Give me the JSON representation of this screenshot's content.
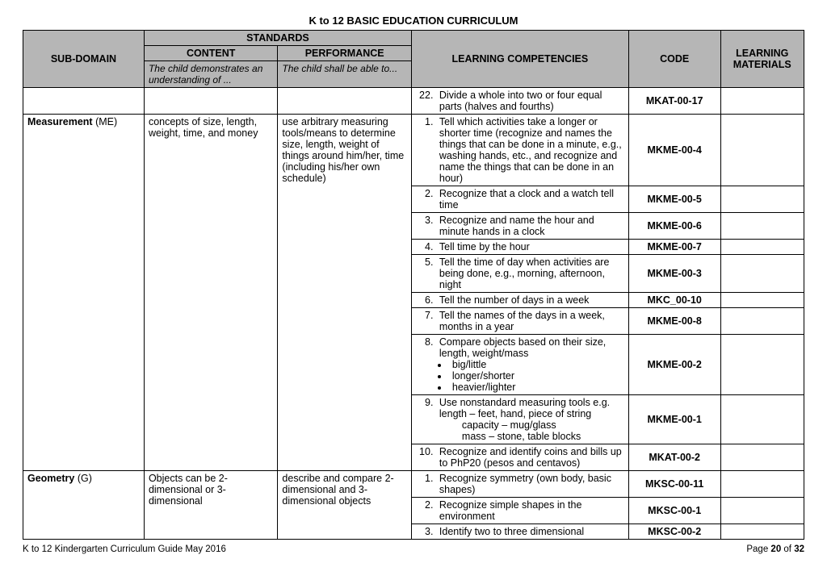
{
  "title": "K to 12 BASIC EDUCATION CURRICULUM",
  "headers": {
    "subdomain": "SUB-DOMAIN",
    "standards": "STANDARDS",
    "content": "CONTENT",
    "performance": "PERFORMANCE",
    "content_sub": "The child demonstrates an understanding of ...",
    "performance_sub": "The child shall be able to...",
    "competencies": "LEARNING COMPETENCIES",
    "code": "CODE",
    "materials": "LEARNING MATERIALS"
  },
  "rows": [
    {
      "competency_num": "22.",
      "competency": "Divide a whole into two or four equal parts (halves and fourths)",
      "code": "MKAT-00-17"
    }
  ],
  "me": {
    "subdomain_label": "Measurement",
    "subdomain_suffix": " (ME)",
    "content": "concepts of size, length, weight, time, and money",
    "performance": "use arbitrary measuring tools/means to determine size, length, weight of things around him/her, time (including his/her own schedule)",
    "items": [
      {
        "n": "1.",
        "text": "Tell  which activities take a longer or shorter time (recognize and names the things that can be done in a minute, e.g., washing hands, etc., and recognize and name the things that can be done in an hour)",
        "code": "MKME-00-4"
      },
      {
        "n": "2.",
        "text": "Recognize that a clock and a watch tell time",
        "code": "MKME-00-5"
      },
      {
        "n": "3.",
        "text": "Recognize and name the hour and minute hands in a clock",
        "code": "MKME-00-6"
      },
      {
        "n": "4.",
        "text": "Tell time by the hour",
        "code": "MKME-00-7"
      },
      {
        "n": "5.",
        "text": "Tell the time of day when activities are being done, e.g., morning, afternoon, night",
        "code": "MKME-00-3"
      },
      {
        "n": "6.",
        "text": "Tell the number of days in a week",
        "code": "MKC_00-10"
      },
      {
        "n": "7.",
        "text": "Tell the names of the days in a week, months in a year",
        "code": "MKME-00-8"
      },
      {
        "n": "8.",
        "text": "Compare objects based on their size, length, weight/mass",
        "bullets": [
          "big/little",
          "longer/shorter",
          "heavier/lighter"
        ],
        "code": "MKME-00-2"
      },
      {
        "n": "9.",
        "text": "Use nonstandard measuring tools e.g. length – feet, hand, piece of string",
        "extra": [
          "capacity – mug/glass",
          "mass – stone, table blocks"
        ],
        "code": "MKME-00-1"
      },
      {
        "n": "10.",
        "text": "Recognize and identify coins and bills up to PhP20 (pesos and centavos)",
        "code": "MKAT-00-2"
      }
    ]
  },
  "g": {
    "subdomain_label": "Geometry",
    "subdomain_suffix": " (G)",
    "content": "Objects  can be 2-dimensional or 3-dimensional",
    "performance": "describe and compare 2-dimensional and 3-dimensional objects",
    "items": [
      {
        "n": "1.",
        "text": "Recognize symmetry (own body, basic shapes)",
        "code": "MKSC-00-11"
      },
      {
        "n": "2.",
        "text": "Recognize simple shapes in the environment",
        "code": "MKSC-00-1"
      },
      {
        "n": "3.",
        "text": "Identify two to three dimensional",
        "code": "MKSC-00-2"
      }
    ]
  },
  "footer": {
    "left": "K to 12 Kindergarten Curriculum Guide May 2016",
    "page_prefix": "Page ",
    "page_num": "20",
    "page_of": " of ",
    "page_total": "32"
  },
  "cols": {
    "subdomain": "145px",
    "content": "160px",
    "performance": "160px",
    "competency": "260px",
    "code": "110px",
    "materials": "100px"
  }
}
